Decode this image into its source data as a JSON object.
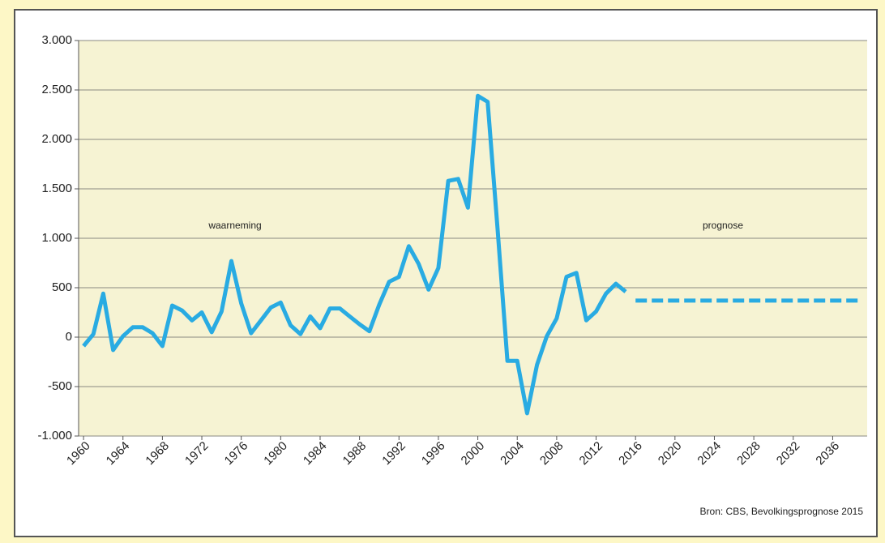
{
  "chart_data": {
    "type": "line",
    "source": "Bron: CBS, Bevolkingsprognose 2015",
    "x": [
      1960,
      1961,
      1962,
      1963,
      1964,
      1965,
      1966,
      1967,
      1968,
      1969,
      1970,
      1971,
      1972,
      1973,
      1974,
      1975,
      1976,
      1977,
      1978,
      1979,
      1980,
      1981,
      1982,
      1983,
      1984,
      1985,
      1986,
      1987,
      1988,
      1989,
      1990,
      1991,
      1992,
      1993,
      1994,
      1995,
      1996,
      1997,
      1998,
      1999,
      2000,
      2001,
      2002,
      2003,
      2004,
      2005,
      2006,
      2007,
      2008,
      2009,
      2010,
      2011,
      2012,
      2013,
      2014,
      2015,
      2016,
      2017,
      2018,
      2019,
      2020,
      2021,
      2022,
      2023,
      2024,
      2025,
      2026,
      2027,
      2028,
      2029,
      2030,
      2031,
      2032,
      2033,
      2034,
      2035,
      2036,
      2037,
      2038,
      2039
    ],
    "series": [
      {
        "name": "waarneming",
        "color": "#29abe2",
        "dashed": false,
        "values": [
          -90,
          30,
          440,
          -130,
          10,
          100,
          100,
          40,
          -90,
          320,
          270,
          170,
          250,
          50,
          260,
          770,
          340,
          40,
          170,
          300,
          350,
          120,
          30,
          210,
          90,
          290,
          290,
          210,
          130,
          60,
          330,
          560,
          610,
          920,
          740,
          480,
          700,
          1580,
          1600,
          1310,
          2440,
          2380,
          1100,
          -240,
          -240,
          -770,
          -280,
          10,
          190,
          610,
          650,
          170,
          260,
          440,
          540,
          460,
          null,
          null,
          null,
          null,
          null,
          null,
          null,
          null,
          null,
          null,
          null,
          null,
          null,
          null,
          null,
          null,
          null,
          null,
          null,
          null,
          null,
          null,
          null,
          null
        ]
      },
      {
        "name": "prognose",
        "color": "#29abe2",
        "dashed": true,
        "values": [
          null,
          null,
          null,
          null,
          null,
          null,
          null,
          null,
          null,
          null,
          null,
          null,
          null,
          null,
          null,
          null,
          null,
          null,
          null,
          null,
          null,
          null,
          null,
          null,
          null,
          null,
          null,
          null,
          null,
          null,
          null,
          null,
          null,
          null,
          null,
          null,
          null,
          null,
          null,
          null,
          null,
          null,
          null,
          null,
          null,
          null,
          null,
          null,
          null,
          null,
          null,
          null,
          null,
          null,
          null,
          null,
          370,
          370,
          370,
          370,
          370,
          370,
          370,
          370,
          370,
          370,
          370,
          370,
          370,
          370,
          370,
          370,
          370,
          370,
          370,
          370,
          370,
          370,
          370,
          370
        ]
      }
    ],
    "xlim": [
      1959.5,
      2039.5
    ],
    "xticks": [
      1960,
      1964,
      1968,
      1972,
      1976,
      1980,
      1984,
      1988,
      1992,
      1996,
      2000,
      2004,
      2008,
      2012,
      2016,
      2020,
      2024,
      2028,
      2032,
      2036
    ],
    "ylim": [
      -1000,
      3000
    ],
    "yticks": [
      {
        "value": 3000,
        "label": "3.000"
      },
      {
        "value": 2500,
        "label": "2.500"
      },
      {
        "value": 2000,
        "label": "2.000"
      },
      {
        "value": 1500,
        "label": "1.500"
      },
      {
        "value": 1000,
        "label": "1.000"
      },
      500,
      0,
      -500,
      {
        "value": -1000,
        "label": "-1.000"
      }
    ],
    "grid": true
  }
}
